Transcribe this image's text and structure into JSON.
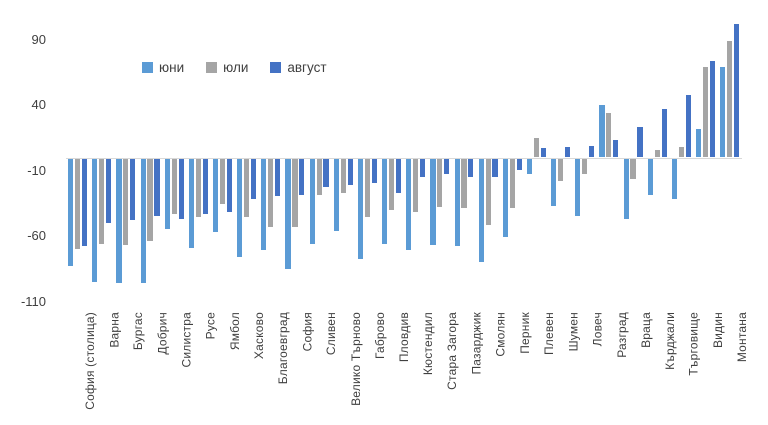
{
  "chart_data": {
    "type": "bar",
    "title": "",
    "xlabel": "",
    "ylabel": "",
    "grid": false,
    "legend_position": "top-center",
    "axis_color": "#d9d9d9",
    "tick_label_color": "#404040",
    "category_label_color": "#404040",
    "ylim": [
      -110,
      110
    ],
    "yticks": [
      90,
      40,
      -10,
      -60,
      -110
    ],
    "categories": [
      "София (столица)",
      "Варна",
      "Бургас",
      "Добрич",
      "Силистра",
      "Русе",
      "Ямбол",
      "Хасково",
      "Благоевград",
      "София",
      "Сливен",
      "Велико Търново",
      "Габрово",
      "Пловдив",
      "Кюстендил",
      "Стара Загора",
      "Пазарджик",
      "Смолян",
      "Перник",
      "Плевен",
      "Шумен",
      "Ловеч",
      "Разград",
      "Враца",
      "Кърджали",
      "Търговище",
      "Видин",
      "Монтана"
    ],
    "series": [
      {
        "name": "юни",
        "color": "#5b9bd5",
        "values": [
          -82,
          -94,
          -95,
          -95,
          -54,
          -68,
          -56,
          -75,
          -70,
          -84,
          -65,
          -55,
          -77,
          -65,
          -70,
          -66,
          -67,
          -79,
          -60,
          -12,
          -36,
          -44,
          40,
          -46,
          -28,
          -31,
          22,
          69
        ]
      },
      {
        "name": "юли",
        "color": "#a5a5a5",
        "values": [
          -69,
          -65,
          -66,
          -63,
          -42,
          -45,
          -35,
          -45,
          -52,
          -52,
          -28,
          -26,
          -45,
          -39,
          -41,
          -37,
          -38,
          -51,
          -38,
          15,
          -17,
          -12,
          34,
          -16,
          6,
          8,
          69,
          89
        ]
      },
      {
        "name": "август",
        "color": "#4472c4",
        "values": [
          -67,
          -49,
          -47,
          -44,
          -46,
          -42,
          -41,
          -31,
          -29,
          -28,
          -22,
          -20,
          -19,
          -26,
          -14,
          -12,
          -14,
          -14,
          -9,
          7,
          8,
          9,
          13,
          23,
          37,
          48,
          74,
          102
        ]
      }
    ]
  }
}
